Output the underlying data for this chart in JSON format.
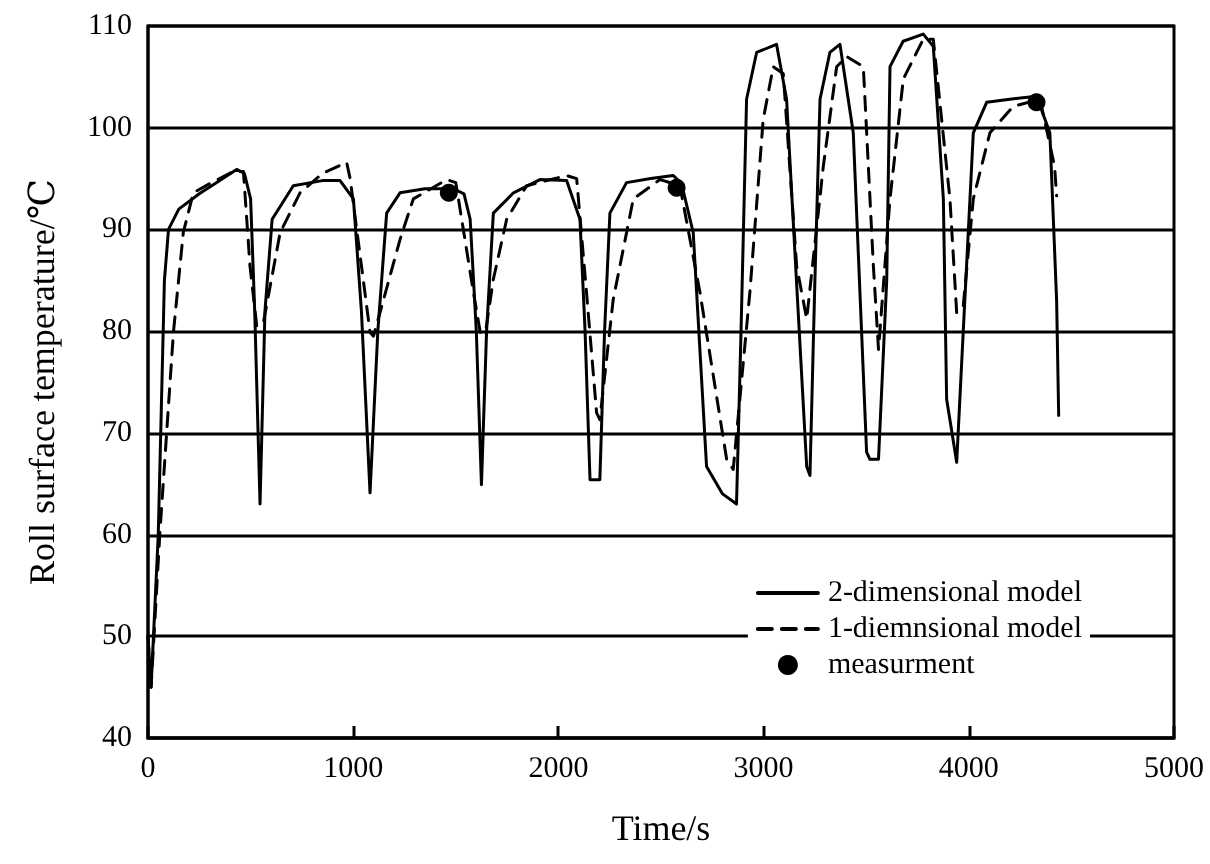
{
  "chart_data": {
    "type": "line",
    "xlabel": "Time/s",
    "ylabel": "Roll surface temperature/℃",
    "xlim": [
      0,
      5000
    ],
    "xticks": [
      0,
      1000,
      2000,
      3000,
      4000,
      5000
    ],
    "ylim": [
      40,
      110
    ],
    "yticks": [
      40,
      50,
      60,
      70,
      80,
      90,
      100,
      110
    ],
    "grid": "y",
    "legend": "bottom right",
    "series": [
      {
        "name": "2-dimensional model",
        "color": "#000000",
        "line_style": "solid",
        "x": [
          0,
          15,
          50,
          80,
          100,
          150,
          250,
          350,
          432,
          470,
          500,
          520,
          546,
          570,
          605,
          708,
          850,
          936,
          1001,
          1040,
          1082,
          1120,
          1163,
          1228,
          1350,
          1488,
          1540,
          1570,
          1600,
          1625,
          1650,
          1683,
          1781,
          1910,
          2040,
          2105,
          2130,
          2154,
          2202,
          2225,
          2251,
          2332,
          2450,
          2560,
          2600,
          2657,
          2722,
          2800,
          2868,
          2890,
          2917,
          2966,
          3063,
          3112,
          3160,
          3210,
          3226,
          3250,
          3275,
          3323,
          3372,
          3437,
          3502,
          3518,
          3560,
          3600,
          3616,
          3680,
          3778,
          3827,
          3876,
          3892,
          3941,
          3973,
          4022,
          4087,
          4200,
          4330,
          4395,
          4428,
          4438
        ],
        "values": [
          50,
          45,
          60,
          85,
          90,
          92,
          93.5,
          94.8,
          95.9,
          95.5,
          93,
          82,
          63,
          82,
          91,
          94.3,
          94.8,
          94.8,
          93,
          82,
          64.1,
          80,
          91.6,
          93.6,
          94,
          94,
          93.5,
          91,
          80,
          64.9,
          80,
          91.6,
          93.6,
          94.9,
          94.8,
          91,
          80,
          65.4,
          65.4,
          80,
          91.6,
          94.6,
          95,
          95.3,
          94.5,
          89.7,
          66.7,
          64,
          63,
          80,
          102.8,
          107.4,
          108.2,
          102.8,
          85,
          66.7,
          65.8,
          85,
          102.8,
          107.4,
          108.2,
          99.5,
          68.1,
          67.4,
          67.4,
          85,
          106,
          108.5,
          109.2,
          108,
          93,
          73.3,
          67.1,
          80,
          99.5,
          102.5,
          102.8,
          103.1,
          99.5,
          83,
          71.7
        ]
      },
      {
        "name": "1-diemnsional model",
        "color": "#000000",
        "line_style": "dashed",
        "x": [
          0,
          15,
          58,
          124,
          172,
          221,
          300,
          416,
          465,
          497,
          530,
          562,
          644,
          741,
          850,
          968,
          985,
          1030,
          1082,
          1099,
          1228,
          1293,
          1456,
          1500,
          1586,
          1619,
          1645,
          1683,
          1748,
          1845,
          2040,
          2089,
          2137,
          2186,
          2202,
          2267,
          2365,
          2495,
          2592,
          2690,
          2820,
          2852,
          2933,
          2998,
          3047,
          3096,
          3161,
          3210,
          3291,
          3356,
          3405,
          3486,
          3535,
          3560,
          3616,
          3681,
          3778,
          3827,
          3908,
          3941,
          3973,
          4022,
          4103,
          4217,
          4347,
          4418,
          4428
        ],
        "values": [
          50,
          45,
          60.2,
          79.9,
          89.7,
          93.6,
          94.5,
          95.7,
          95.7,
          86.4,
          80.5,
          80.8,
          89.7,
          93.6,
          95.5,
          96.6,
          95,
          88,
          79.9,
          79.5,
          89,
          93,
          94.9,
          94.6,
          83.8,
          79.9,
          79.9,
          85.1,
          91,
          94.3,
          95.3,
          95,
          83.8,
          72,
          71.3,
          83.1,
          93,
          94.9,
          94.3,
          83.8,
          67.4,
          66.4,
          83.8,
          100.8,
          106,
          105.3,
          86.4,
          81.2,
          96.2,
          106,
          107,
          106,
          86.4,
          78.2,
          93,
          104.8,
          108.7,
          108.7,
          93,
          81.8,
          82.5,
          93,
          99.5,
          102.1,
          102.8,
          96.2,
          93.3
        ]
      },
      {
        "name": "measurment",
        "type": "scatter",
        "marker": "circle",
        "color": "#000000",
        "x": [
          1466,
          2576,
          4330
        ],
        "values": [
          93.6,
          94.1,
          102.5
        ]
      }
    ]
  }
}
